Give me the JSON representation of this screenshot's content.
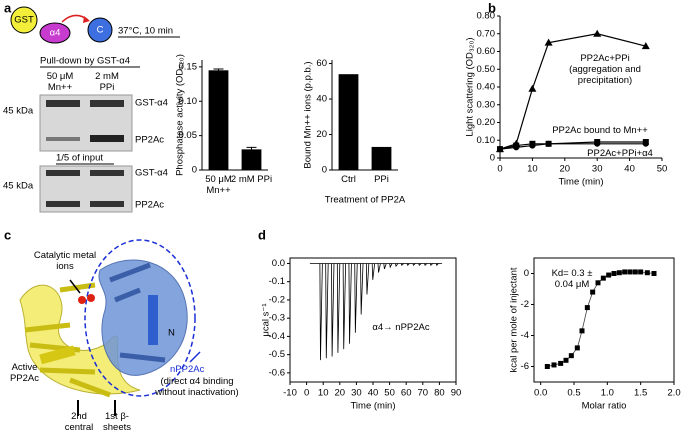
{
  "panels": {
    "a": {
      "letter": "a",
      "schematic": [
        "GST",
        "α4",
        "C"
      ],
      "condition": "37°C, 10 min",
      "pulldown": "Pull-down by GST-α4",
      "lanes": [
        "50 μM Mn++",
        "2 mM PPi"
      ],
      "gels": [
        {
          "bands": [
            "GST-α4",
            "PP2Ac"
          ],
          "marker": "45 kDa"
        },
        {
          "title": "1/5 of input",
          "bands": [
            "GST-α4",
            "PP2Ac"
          ],
          "marker": "45 kDa"
        }
      ]
    },
    "b": {
      "letter": "b"
    },
    "c": {
      "letter": "c",
      "labels": [
        "Catalytic metal ions",
        "N",
        "Active PP2Ac",
        "nPP2Ac",
        "(direct α4 binding without inactivation)",
        "2nd central",
        "1st β-sheets"
      ]
    },
    "d": {
      "letter": "d"
    }
  },
  "chart_data": [
    {
      "type": "bar",
      "ylabel": "Phosphatase activity (OD₆₂₀)",
      "categories": [
        "50 μM Mn++",
        "2 mM PPi"
      ],
      "values": [
        0.145,
        0.03
      ],
      "errors": [
        0.002,
        0.003
      ],
      "color": "#000000",
      "ylim": [
        0,
        0.16
      ],
      "yticks": [
        0,
        0.05,
        {
          "value": 0.1,
          "label": "0.10"
        },
        0.15
      ]
    },
    {
      "type": "bar",
      "ylabel": "Bound Mn++ ions (p.p.b.)",
      "xlabel": "Treatment of PP2A",
      "categories": [
        "Ctrl",
        "PPi"
      ],
      "values": [
        54,
        13
      ],
      "color": "#000000",
      "ylim": [
        0,
        62
      ],
      "yticks": [
        0,
        20,
        40,
        60
      ]
    },
    {
      "type": "line",
      "ylabel": "Light scattering (OD₃₂₀)",
      "xlabel": "Time (min)",
      "x": [
        0,
        5,
        10,
        15,
        30,
        45
      ],
      "series": [
        {
          "name": "PP2Ac+PPi (aggregation and precipitation)",
          "color": "#000000",
          "marker": "triangle",
          "values": [
            0.05,
            0.08,
            0.39,
            0.65,
            0.7,
            0.63
          ]
        },
        {
          "name": "PP2Ac bound to Mn++",
          "color": "#000000",
          "marker": "square",
          "values": [
            0.05,
            0.07,
            0.08,
            0.08,
            0.09,
            0.09
          ]
        },
        {
          "name": "PP2Ac+PPi+α4",
          "color": "#000000",
          "marker": "circle",
          "values": [
            0.05,
            0.06,
            0.07,
            0.08,
            0.08,
            0.08
          ]
        }
      ],
      "xlim": [
        0,
        50
      ],
      "xticks": [
        0,
        10,
        20,
        30,
        40,
        50
      ],
      "ylim": [
        0,
        0.8
      ],
      "yticks": [
        0,
        {
          "value": 0.1,
          "label": "0.10"
        },
        {
          "value": 0.2,
          "label": "0.20"
        },
        {
          "value": 0.3,
          "label": "0.30"
        },
        {
          "value": 0.4,
          "label": "0.40"
        },
        {
          "value": 0.5,
          "label": "0.50"
        },
        {
          "value": 0.6,
          "label": "0.60"
        },
        {
          "value": 0.7,
          "label": "0.70"
        },
        {
          "value": 0.8,
          "label": "0.80"
        }
      ]
    },
    {
      "type": "trace",
      "ylabel": "μcal s⁻¹",
      "xlabel": "Time (min)",
      "annotation": "α4→ nPP2Ac",
      "x": [
        8,
        11.5,
        15,
        18.5,
        22,
        25.5,
        29,
        32.5,
        36,
        39.5,
        43,
        46.5,
        50,
        53.5,
        57,
        60.5,
        64,
        67.5,
        71,
        74.5,
        78
      ],
      "values": [
        -0.53,
        -0.52,
        -0.51,
        -0.49,
        -0.47,
        -0.44,
        -0.38,
        -0.28,
        -0.17,
        -0.09,
        -0.05,
        -0.03,
        -0.02,
        -0.015,
        -0.01,
        -0.01,
        -0.01,
        -0.01,
        -0.01,
        -0.01,
        -0.01
      ],
      "color": "#000000",
      "xlim": [
        -10,
        90
      ],
      "xticks": [
        -10,
        0,
        10,
        20,
        30,
        40,
        50,
        60,
        70,
        80,
        90
      ],
      "ylim": [
        -0.65,
        0.03
      ],
      "yticks": [
        {
          "value": 0,
          "label": "0.0"
        },
        -0.1,
        -0.2,
        -0.3,
        -0.4,
        -0.5,
        -0.6
      ]
    },
    {
      "type": "scatter",
      "ylabel": "kcal per mole of injectant",
      "xlabel": "Molar ratio",
      "annotation": "Kd= 0.3 ± 0.04 μM",
      "x": [
        0.1,
        0.2,
        0.3,
        0.38,
        0.46,
        0.55,
        0.62,
        0.7,
        0.78,
        0.86,
        0.94,
        1.02,
        1.1,
        1.18,
        1.26,
        1.34,
        1.42,
        1.5,
        1.6,
        1.7
      ],
      "values": [
        -6,
        -5.9,
        -5.8,
        -5.6,
        -5.3,
        -4.8,
        -3.7,
        -2.2,
        -1.2,
        -0.6,
        -0.3,
        -0.1,
        0,
        0.05,
        0.1,
        0.1,
        0.1,
        0.1,
        0.05,
        0
      ],
      "color": "#000000",
      "xlim": [
        -0.1,
        2.0
      ],
      "xticks": [
        {
          "value": 0,
          "label": "0.0"
        },
        0.5,
        {
          "value": 1,
          "label": "1.0"
        },
        1.5,
        {
          "value": 2,
          "label": "2.0"
        }
      ],
      "ylim": [
        -7,
        1
      ],
      "yticks": [
        0,
        -2,
        -4,
        -6
      ]
    }
  ]
}
